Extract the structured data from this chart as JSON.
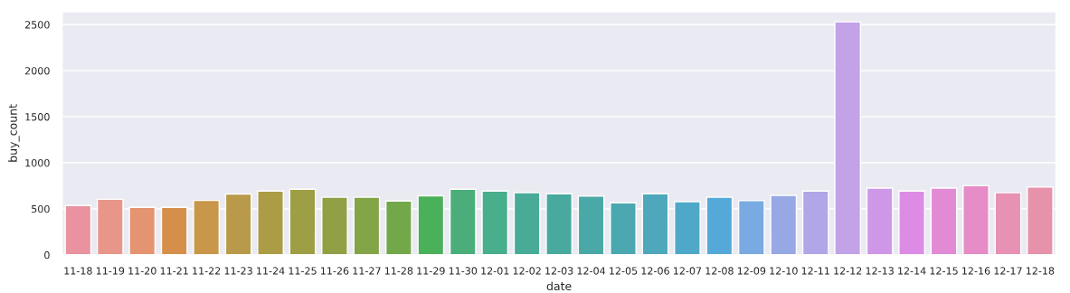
{
  "chart_data": {
    "type": "bar",
    "xlabel": "date",
    "ylabel": "buy_count",
    "categories": [
      "11-18",
      "11-19",
      "11-20",
      "11-21",
      "11-22",
      "11-23",
      "11-24",
      "11-25",
      "11-26",
      "11-27",
      "11-28",
      "11-29",
      "11-30",
      "12-01",
      "12-02",
      "12-03",
      "12-04",
      "12-05",
      "12-06",
      "12-07",
      "12-08",
      "12-09",
      "12-10",
      "12-11",
      "12-12",
      "12-13",
      "12-14",
      "12-15",
      "12-16",
      "12-17",
      "12-18"
    ],
    "values": [
      536,
      604,
      517,
      517,
      592,
      660,
      694,
      713,
      626,
      626,
      585,
      642,
      713,
      694,
      675,
      664,
      638,
      566,
      664,
      577,
      626,
      589,
      645,
      694,
      2530,
      725,
      694,
      725,
      751,
      675,
      736
    ],
    "colors": [
      "#e8939f",
      "#e8968a",
      "#e49470",
      "#d68f4a",
      "#c8974a",
      "#b99a4a",
      "#ab9c45",
      "#9e9e44",
      "#92a045",
      "#84a448",
      "#72a84a",
      "#4bb05a",
      "#4bae7a",
      "#48ae8b",
      "#48ab97",
      "#4aa99e",
      "#4aa8a6",
      "#4ba8b0",
      "#4da8bc",
      "#4fa8c8",
      "#55a9d8",
      "#7aaae2",
      "#98a8e5",
      "#b0a6e8",
      "#c3a2e8",
      "#cf97e8",
      "#dd8ce6",
      "#e38ad5",
      "#e68cc6",
      "#e791b4",
      "#e792ab"
    ],
    "ylim": [
      0,
      2640
    ],
    "yticks": [
      0,
      500,
      1000,
      1500,
      2000,
      2500
    ],
    "grid": "y"
  }
}
